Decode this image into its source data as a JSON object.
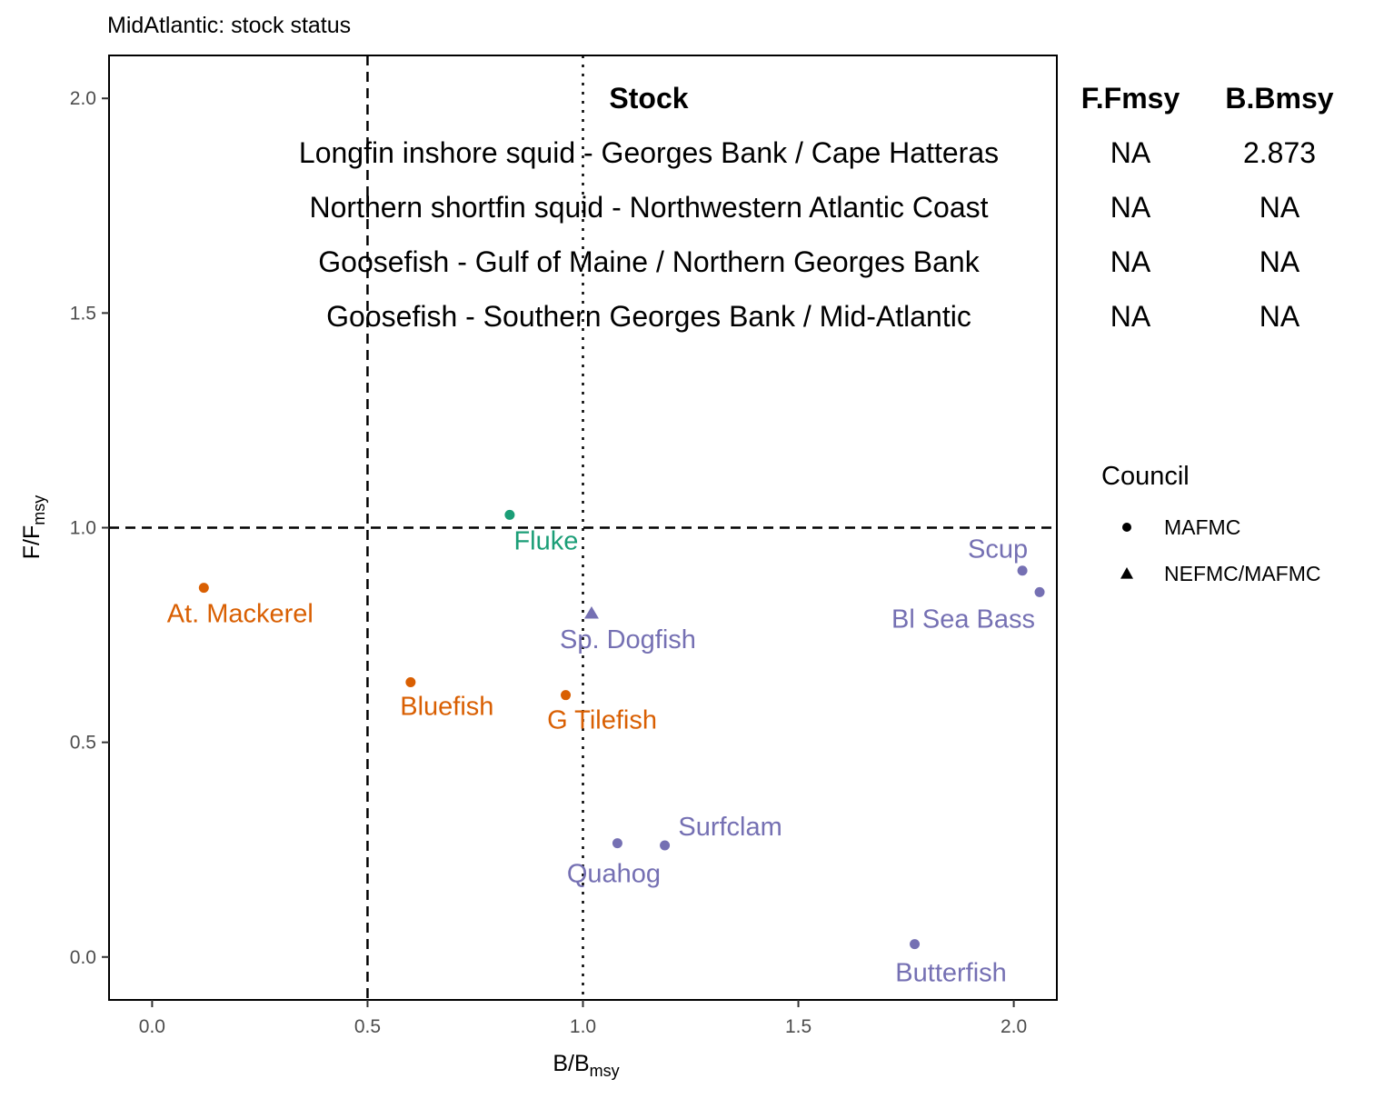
{
  "chart_data": {
    "type": "scatter",
    "title": "MidAtlantic: stock status",
    "xlabel": "B/B",
    "xlabel_sub": "msy",
    "ylabel": "F/F",
    "ylabel_sub": "msy",
    "xlim": [
      -0.1,
      2.1
    ],
    "ylim": [
      -0.1,
      2.1
    ],
    "x_ticks": [
      0.0,
      0.5,
      1.0,
      1.5,
      2.0
    ],
    "x_tick_labels": [
      "0.0",
      "0.5",
      "1.0",
      "1.5",
      "2.0"
    ],
    "y_ticks": [
      0.0,
      0.5,
      1.0,
      1.5,
      2.0
    ],
    "y_tick_labels": [
      "0.0",
      "0.5",
      "1.0",
      "1.5",
      "2.0"
    ],
    "grid": false,
    "reference_lines": [
      {
        "axis": "x",
        "value": 0.5,
        "style": "dashed"
      },
      {
        "axis": "x",
        "value": 1.0,
        "style": "dotted"
      },
      {
        "axis": "y",
        "value": 1.0,
        "style": "dashed"
      }
    ],
    "colors": {
      "orange": "#D95F02",
      "green": "#1B9E77",
      "purple": "#7570B3"
    },
    "points": [
      {
        "label": "At. Mackerel",
        "x": 0.12,
        "y": 0.86,
        "council": "MAFMC",
        "color": "#D95F02"
      },
      {
        "label": "Bluefish",
        "x": 0.6,
        "y": 0.64,
        "council": "MAFMC",
        "color": "#D95F02"
      },
      {
        "label": "G Tilefish",
        "x": 0.96,
        "y": 0.61,
        "council": "MAFMC",
        "color": "#D95F02"
      },
      {
        "label": "Fluke",
        "x": 0.83,
        "y": 1.03,
        "council": "MAFMC",
        "color": "#1B9E77"
      },
      {
        "label": "Sp. Dogfish",
        "x": 1.02,
        "y": 0.8,
        "council": "NEFMC/MAFMC",
        "color": "#7570B3"
      },
      {
        "label": "Quahog",
        "x": 1.08,
        "y": 0.265,
        "council": "MAFMC",
        "color": "#7570B3"
      },
      {
        "label": "Surfclam",
        "x": 1.19,
        "y": 0.26,
        "council": "MAFMC",
        "color": "#7570B3"
      },
      {
        "label": "Butterfish",
        "x": 1.77,
        "y": 0.03,
        "council": "MAFMC",
        "color": "#7570B3"
      },
      {
        "label": "Scup",
        "x": 2.02,
        "y": 0.9,
        "council": "MAFMC",
        "color": "#7570B3"
      },
      {
        "label": "Bl Sea Bass",
        "x": 2.06,
        "y": 0.85,
        "council": "MAFMC",
        "color": "#7570B3"
      }
    ],
    "legend": {
      "title": "Council",
      "placement": "right",
      "entries": [
        {
          "label": "MAFMC",
          "shape": "circle"
        },
        {
          "label": "NEFMC/MAFMC",
          "shape": "triangle"
        }
      ]
    },
    "table": {
      "headers": [
        "Stock",
        "F.Fmsy",
        "B.Bmsy"
      ],
      "rows": [
        [
          "Longfin inshore squid - Georges Bank / Cape Hatteras",
          "NA",
          "2.873"
        ],
        [
          "Northern shortfin squid - Northwestern Atlantic Coast",
          "NA",
          "NA"
        ],
        [
          "Goosefish - Gulf of Maine / Northern Georges Bank",
          "NA",
          "NA"
        ],
        [
          "Goosefish - Southern Georges Bank / Mid-Atlantic",
          "NA",
          "NA"
        ]
      ]
    }
  }
}
